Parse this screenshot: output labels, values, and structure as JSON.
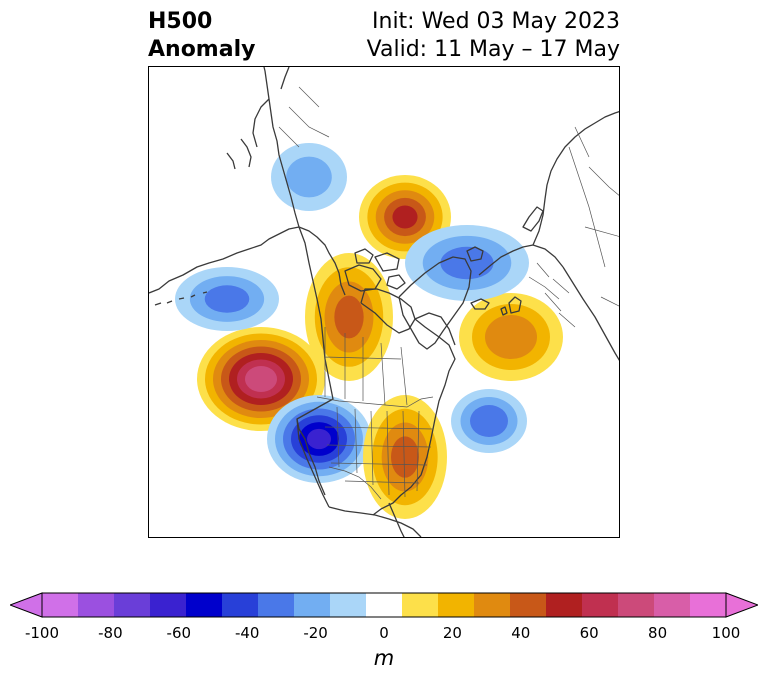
{
  "header": {
    "title_line1": "H500",
    "title_line2": "Anomaly",
    "init_label": "Init: Wed 03 May 2023",
    "valid_label": "Valid: 11 May – 17 May"
  },
  "colorbar": {
    "unit_label": "m",
    "ticks": [
      "-100",
      "-80",
      "-60",
      "-40",
      "-20",
      "0",
      "20",
      "40",
      "60",
      "80",
      "100"
    ],
    "levels": [
      -100,
      -90,
      -80,
      -70,
      -60,
      -50,
      -40,
      -30,
      -20,
      -10,
      10,
      20,
      30,
      40,
      50,
      60,
      70,
      80,
      90,
      100
    ],
    "colors": [
      "#d070e8",
      "#9b50e0",
      "#6a3ed8",
      "#3a22d0",
      "#0000cc",
      "#2840d8",
      "#4a78e8",
      "#72aef2",
      "#aad6f8",
      "#ffffff",
      "#fde04a",
      "#f2b400",
      "#e08a10",
      "#c85818",
      "#b02020",
      "#c03050",
      "#cc4a7a",
      "#d85ea8",
      "#e870d8"
    ],
    "under_color": "#d070e8",
    "over_color": "#e870d8"
  },
  "anomalies": [
    {
      "name": "northeast-pacific-ridge",
      "value": 75
    },
    {
      "name": "western-us-trough",
      "value": -60
    },
    {
      "name": "eastern-us-ridge",
      "value": 40
    },
    {
      "name": "siberian-ridge",
      "value": 50
    },
    {
      "name": "central-atlantic-ridge",
      "value": 35
    },
    {
      "name": "western-atlantic-trough",
      "value": -35
    },
    {
      "name": "kara-sea-trough",
      "value": -30
    },
    {
      "name": "western-canada-arctic-ridge",
      "value": 40
    },
    {
      "name": "aleutian-trough",
      "value": -30
    },
    {
      "name": "east-asia-trough",
      "value": -20
    }
  ]
}
